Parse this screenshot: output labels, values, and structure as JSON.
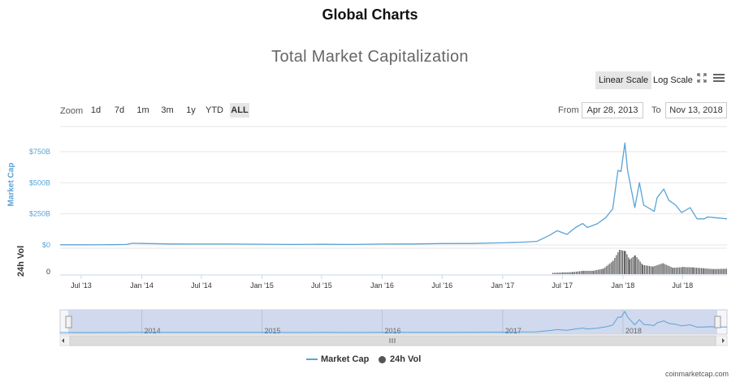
{
  "page": {
    "title": "Global Charts"
  },
  "chart": {
    "title": "Total Market Capitalization",
    "scale_buttons": {
      "linear": "Linear Scale",
      "log": "Log Scale"
    },
    "zoom_label": "Zoom",
    "zoom_options": [
      "1d",
      "7d",
      "1m",
      "3m",
      "1y",
      "YTD",
      "ALL"
    ],
    "zoom_selected": "ALL",
    "range": {
      "from_label": "From",
      "from_value": "Apr 28, 2013",
      "to_label": "To",
      "to_value": "Nov 13, 2018"
    },
    "y_axis_title": "Market Cap",
    "vol_axis_title": "24h Vol",
    "legend": {
      "market_cap": "Market Cap",
      "vol": "24h Vol"
    },
    "navigator_labels": [
      "2014",
      "2015",
      "2016",
      "2017",
      "2018"
    ],
    "credit": "coinmarketcap.com",
    "colors": {
      "line": "#5ba3d6",
      "volume": "#555555",
      "navigator_fill": "#ccd6eb"
    }
  },
  "chart_data": {
    "type": "line",
    "title": "Total Market Capitalization",
    "xlabel": "",
    "ylabel": "Market Cap",
    "x_range": [
      "2013-04-28",
      "2018-11-13"
    ],
    "ylim": [
      0,
      850
    ],
    "y_unit": "B USD",
    "y_ticks": [
      "$0",
      "$250B",
      "$500B",
      "$750B"
    ],
    "vol_ticks": [
      "0"
    ],
    "x_tick_labels": [
      "Jul '13",
      "Jan '14",
      "Jul '14",
      "Jan '15",
      "Jul '15",
      "Jan '16",
      "Jul '16",
      "Jan '17",
      "Jul '17",
      "Jan '18",
      "Jul '18"
    ],
    "grid": true,
    "legend_position": "bottom-center",
    "series": [
      {
        "name": "Market Cap",
        "x": [
          "2013-04-28",
          "2013-07-01",
          "2013-10-01",
          "2013-11-15",
          "2013-12-04",
          "2014-01-01",
          "2014-04-01",
          "2014-07-01",
          "2014-10-01",
          "2015-01-01",
          "2015-04-01",
          "2015-07-01",
          "2015-10-01",
          "2016-01-01",
          "2016-04-01",
          "2016-07-01",
          "2016-10-01",
          "2017-01-01",
          "2017-03-01",
          "2017-04-15",
          "2017-05-25",
          "2017-06-15",
          "2017-07-15",
          "2017-08-10",
          "2017-09-01",
          "2017-09-15",
          "2017-10-15",
          "2017-11-10",
          "2017-12-01",
          "2017-12-17",
          "2017-12-26",
          "2018-01-07",
          "2018-01-15",
          "2018-02-06",
          "2018-02-20",
          "2018-03-05",
          "2018-03-18",
          "2018-04-06",
          "2018-04-15",
          "2018-05-05",
          "2018-05-20",
          "2018-06-10",
          "2018-06-28",
          "2018-07-24",
          "2018-08-14",
          "2018-09-05",
          "2018-09-15",
          "2018-10-05",
          "2018-11-13"
        ],
        "y": [
          1.5,
          1,
          2,
          4,
          14,
          12,
          8,
          7,
          7,
          6,
          4,
          5,
          4,
          7,
          8,
          11,
          12,
          17,
          22,
          29,
          80,
          115,
          85,
          140,
          172,
          140,
          170,
          220,
          290,
          600,
          590,
          820,
          600,
          300,
          500,
          320,
          300,
          270,
          380,
          450,
          360,
          320,
          260,
          300,
          210,
          210,
          225,
          220,
          210
        ]
      },
      {
        "name": "24h Vol",
        "x": [
          "2017-06-01",
          "2017-07-01",
          "2017-08-01",
          "2017-09-01",
          "2017-10-01",
          "2017-11-01",
          "2017-12-01",
          "2017-12-20",
          "2018-01-07",
          "2018-01-20",
          "2018-02-06",
          "2018-03-01",
          "2018-04-01",
          "2018-05-01",
          "2018-06-01",
          "2018-07-01",
          "2018-08-01",
          "2018-09-01",
          "2018-10-01",
          "2018-11-13"
        ],
        "y": [
          3,
          4,
          5,
          8,
          8,
          13,
          32,
          58,
          55,
          35,
          45,
          22,
          18,
          26,
          15,
          17,
          16,
          14,
          12,
          13
        ]
      }
    ],
    "vol_unit": "B USD"
  }
}
